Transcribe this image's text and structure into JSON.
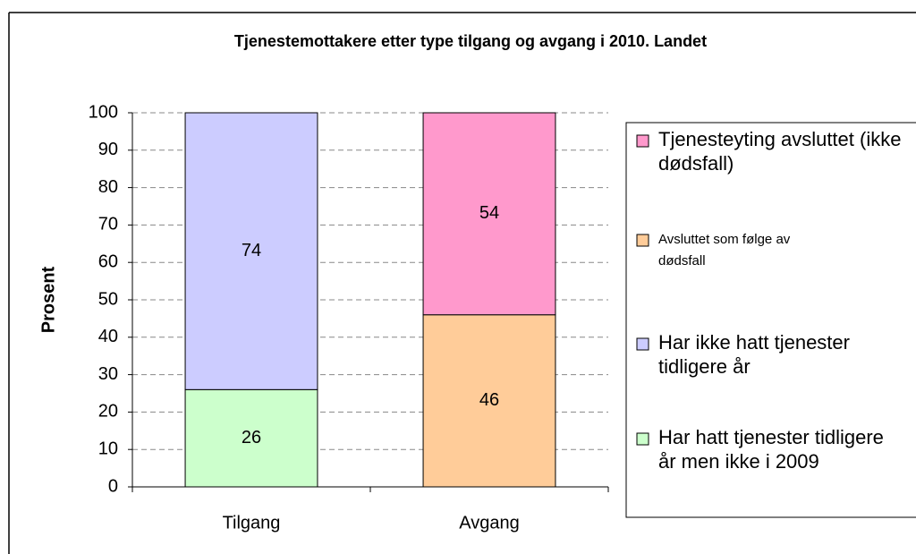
{
  "chart_data": {
    "type": "stacked_bar",
    "title": "Tjenestemottakere etter type tilgang og avgang i 2010. Landet",
    "ylabel": "Prosent",
    "categories": [
      "Tilgang",
      "Avgang"
    ],
    "series": [
      {
        "name": "Tjenesteyting avsluttet (ikke dødsfall)",
        "color": "#ff99cc",
        "values": [
          null,
          54
        ]
      },
      {
        "name": "Avsluttet som følge av dødsfall",
        "color": "#ffcc99",
        "values": [
          null,
          46
        ]
      },
      {
        "name": "Har ikke hatt tjenester tidligere år",
        "color": "#ccccff",
        "values": [
          74,
          null
        ]
      },
      {
        "name": "Har hatt tjenester tidligere år men ikke i 2009",
        "color": "#ccffcc",
        "values": [
          26,
          null
        ]
      }
    ],
    "ylim": [
      0,
      100
    ],
    "yticks": [
      0,
      10,
      20,
      30,
      40,
      50,
      60,
      70,
      80,
      90,
      100
    ],
    "grid": true,
    "legend": "right"
  }
}
